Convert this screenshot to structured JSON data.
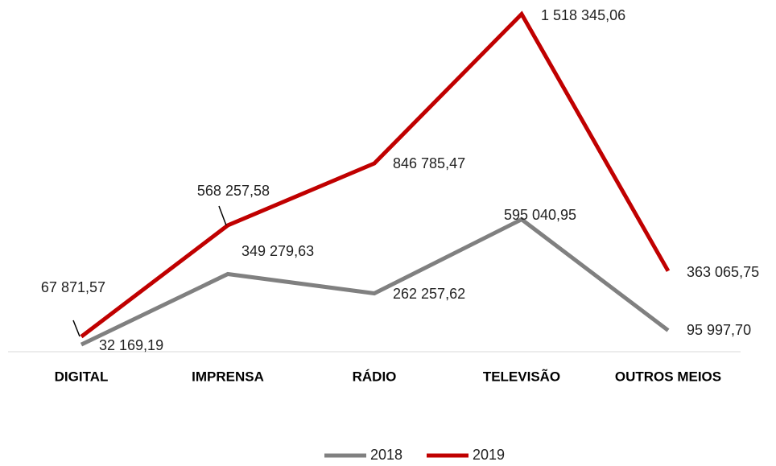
{
  "chart_data": {
    "type": "line",
    "categories": [
      "DIGITAL",
      "IMPRENSA",
      "RÁDIO",
      "TELEVISÃO",
      "OUTROS MEIOS"
    ],
    "series": [
      {
        "name": "2018",
        "color": "#808080",
        "values": [
          32169.19,
          349279.63,
          262257.62,
          595040.95,
          95997.7
        ],
        "value_labels": [
          "32 169,19",
          "349 279,63",
          "262 257,62",
          "595 040,95",
          "95 997,70"
        ]
      },
      {
        "name": "2019",
        "color": "#c00000",
        "values": [
          67871.57,
          568257.58,
          846785.47,
          1518345.06,
          363065.75
        ],
        "value_labels": [
          "67 871,57",
          "568 257,58",
          "846 785,47",
          "1 518 345,06",
          "363 065,75"
        ]
      }
    ],
    "ylim": [
      0,
      1520000
    ],
    "legend": "bottom"
  }
}
